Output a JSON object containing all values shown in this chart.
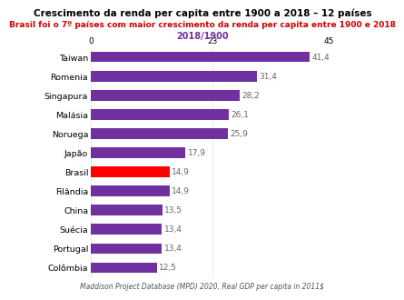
{
  "title": "Crescimento da renda per capita entre 1900 a 2018 – 12 países",
  "subtitle1": "Brasil foi o 7º países com maior crescimento da renda per capita entre 1900 e 2018",
  "subtitle2": "2018/1900",
  "categories": [
    "Taiwan",
    "Romenia",
    "Singapura",
    "Malásia",
    "Noruega",
    "Japão",
    "Brasil",
    "Filândia",
    "China",
    "Suécia",
    "Portugal",
    "Colômbia"
  ],
  "values": [
    41.4,
    31.4,
    28.2,
    26.1,
    25.9,
    17.9,
    14.9,
    14.9,
    13.5,
    13.4,
    13.4,
    12.5
  ],
  "bar_colors": [
    "#7030a0",
    "#7030a0",
    "#7030a0",
    "#7030a0",
    "#7030a0",
    "#7030a0",
    "#ff0000",
    "#7030a0",
    "#7030a0",
    "#7030a0",
    "#7030a0",
    "#7030a0"
  ],
  "xlim": [
    0,
    45
  ],
  "xticks": [
    0,
    23,
    45
  ],
  "title_color": "#000000",
  "subtitle1_color": "#cc0000",
  "subtitle2_color": "#7030a0",
  "value_label_color": "#666666",
  "footnote": "Maddison Project Database (MPD) 2020, Real GDP per capita in 2011$",
  "background_color": "#ffffff",
  "title_fontsize": 7.5,
  "subtitle1_fontsize": 6.5,
  "subtitle2_fontsize": 7.0,
  "tick_fontsize": 6.5,
  "bar_label_fontsize": 6.5,
  "ylabel_fontsize": 6.8,
  "footnote_fontsize": 5.5
}
